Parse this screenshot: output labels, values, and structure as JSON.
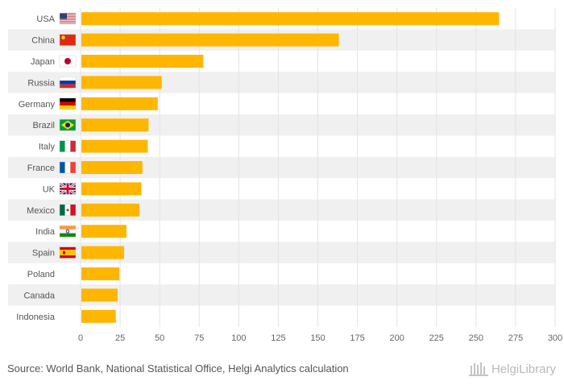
{
  "chart_data": {
    "type": "bar",
    "orientation": "horizontal",
    "title": "",
    "xlabel": "",
    "ylabel": "",
    "xlim": [
      0,
      300
    ],
    "ticks": [
      0,
      25,
      50,
      75,
      100,
      125,
      150,
      175,
      200,
      225,
      250,
      275,
      300
    ],
    "grid": true,
    "legend": "none",
    "categories": [
      "USA",
      "China",
      "Japan",
      "Russia",
      "Germany",
      "Brazil",
      "Italy",
      "France",
      "UK",
      "Mexico",
      "India",
      "Spain",
      "Poland",
      "Canada",
      "Indonesia"
    ],
    "flags": [
      "usa",
      "china",
      "japan",
      "russia",
      "germany",
      "brazil",
      "italy",
      "france",
      "uk",
      "mexico",
      "india",
      "spain",
      "",
      "",
      ""
    ],
    "values": [
      264.6,
      163.3,
      77.6,
      51.3,
      48.8,
      43.0,
      42.5,
      39.1,
      38.4,
      37.2,
      29.0,
      27.5,
      24.5,
      23.4,
      22.3
    ],
    "colors": {
      "bar": "#ffb600",
      "band": "#f0f0f0",
      "grid": "#e3e3e3",
      "label": "#555555",
      "tick": "#666666"
    }
  },
  "source": "Source: World Bank, National Statistical Office, Helgi Analytics calculation",
  "brand": "HelgiLibrary"
}
